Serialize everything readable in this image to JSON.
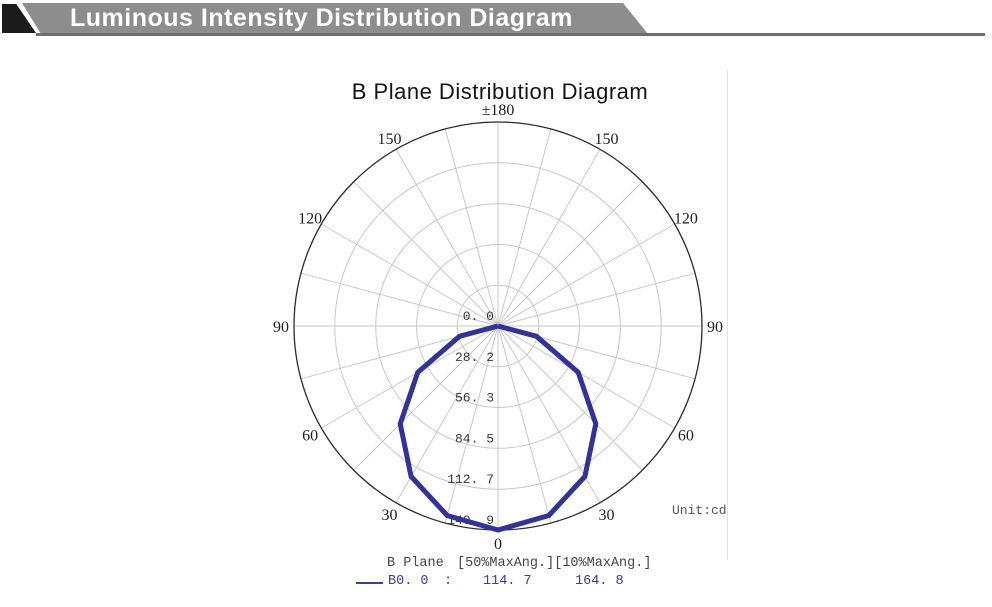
{
  "header": {
    "title": "Luminous Intensity Distribution Diagram"
  },
  "chart": {
    "title": "B Plane Distribution Diagram",
    "unit_label": "Unit:cd"
  },
  "legend": {
    "plane_label": "B Plane",
    "columns": "[50%MaxAng.][10%MaxAng.]",
    "series_name": "B0. 0",
    "colon": ":",
    "max50": "114. 7",
    "max10": "164. 8"
  },
  "colors": {
    "banner_bg": "#8d8d8d",
    "banner_rule": "#6e6e6e",
    "banner_text": "#ffffff",
    "grid": "#c8c8c8",
    "outer_circle": "#2b2b2b",
    "curve": "#32329b",
    "legend_series": "#3c3c99"
  },
  "chart_data": {
    "type": "line",
    "coordinate_system": "polar",
    "title": "B Plane Distribution Diagram",
    "unit": "cd",
    "angle_zero_position": "bottom",
    "spoke_step_deg": 15,
    "rmax": 140.9,
    "radial_ticks": [
      {
        "value": 0,
        "label": "0. 0"
      },
      {
        "value": 28.2,
        "label": "28. 2"
      },
      {
        "value": 56.3,
        "label": "56. 3"
      },
      {
        "value": 84.5,
        "label": "84. 5"
      },
      {
        "value": 112.7,
        "label": "112. 7"
      },
      {
        "value": 140.9,
        "label": "140. 9"
      }
    ],
    "angle_ticks": [
      {
        "deg": 0,
        "label": "0"
      },
      {
        "deg": 30,
        "label": "30"
      },
      {
        "deg": -30,
        "label": "30"
      },
      {
        "deg": 60,
        "label": "60"
      },
      {
        "deg": -60,
        "label": "60"
      },
      {
        "deg": 90,
        "label": "90"
      },
      {
        "deg": -90,
        "label": "90"
      },
      {
        "deg": 120,
        "label": "120"
      },
      {
        "deg": -120,
        "label": "120"
      },
      {
        "deg": 150,
        "label": "150"
      },
      {
        "deg": -150,
        "label": "150"
      },
      {
        "deg": 180,
        "label": "±180"
      }
    ],
    "series": [
      {
        "name": "B0.0",
        "color": "#32329b",
        "angles_deg": [
          -90,
          -75,
          -60,
          -45,
          -30,
          -15,
          0,
          15,
          30,
          45,
          60,
          75,
          90
        ],
        "values_cd": [
          0.0,
          27.5,
          64.0,
          95.5,
          120.0,
          135.5,
          140.9,
          135.5,
          120.0,
          95.5,
          64.0,
          27.5,
          0.0
        ],
        "max_angle_50pct": 114.7,
        "max_angle_10pct": 164.8
      }
    ]
  }
}
